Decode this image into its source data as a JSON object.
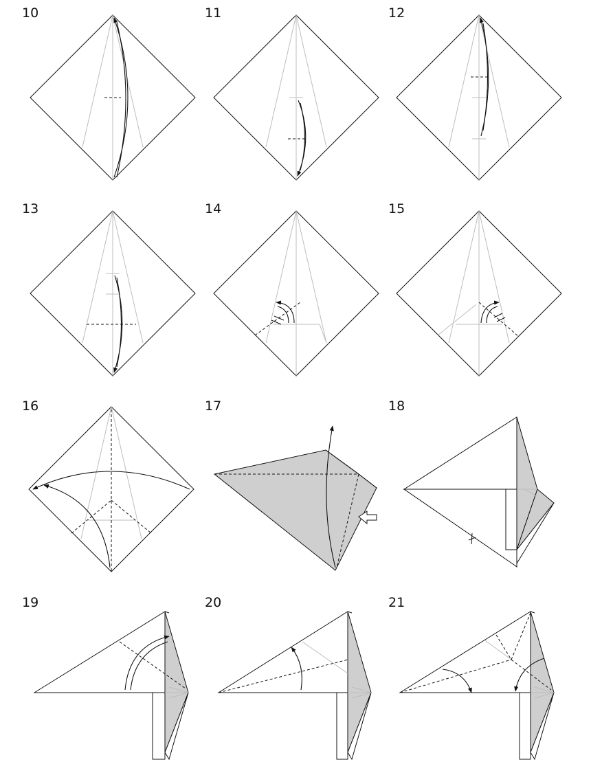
{
  "steps": [
    {
      "label": "10"
    },
    {
      "label": "11"
    },
    {
      "label": "12"
    },
    {
      "label": "13"
    },
    {
      "label": "14"
    },
    {
      "label": "15"
    },
    {
      "label": "16"
    },
    {
      "label": "17"
    },
    {
      "label": "18"
    },
    {
      "label": "19"
    },
    {
      "label": "20"
    },
    {
      "label": "21"
    }
  ],
  "colors": {
    "paper_back": "#cfcfcf",
    "crease": "#bdbdbd",
    "line": "#111111"
  }
}
